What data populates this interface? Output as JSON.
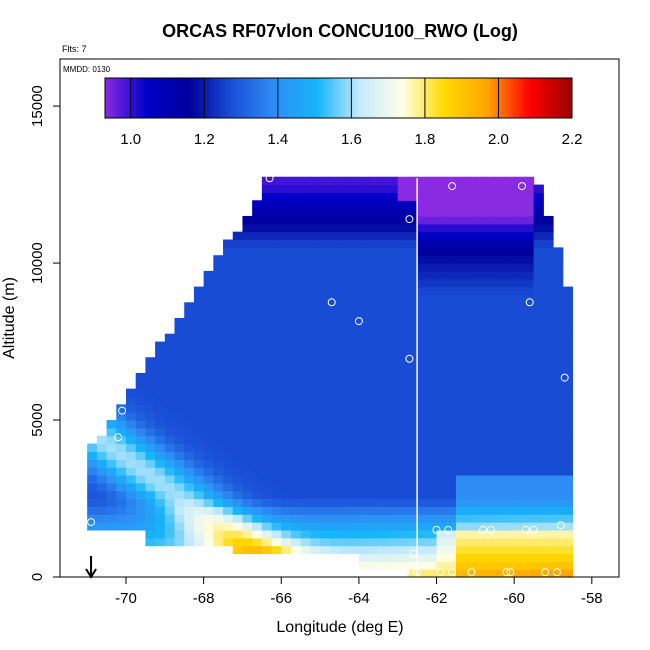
{
  "chart_data": {
    "type": "heatmap",
    "title": "ORCAS RF07vlon CONCU100_RWO (Log)",
    "annotation_flts": "Flts: 7",
    "annotation_mmdd": "MMDD: 0130",
    "xlabel": "Longitude (deg E)",
    "ylabel": "Altitude (m)",
    "xlim": [
      -71.7,
      -57.3
    ],
    "ylim": [
      0,
      16500
    ],
    "xticks": [
      -70,
      -68,
      -66,
      -64,
      -62,
      -60,
      -58
    ],
    "yticks": [
      0,
      5000,
      10000,
      15000
    ],
    "vertical_line_x": -62.5,
    "arrow_x": -70.9,
    "colorbar": {
      "min": 0.93,
      "max": 2.2,
      "ticks": [
        1.0,
        1.2,
        1.4,
        1.6,
        1.8,
        2.0,
        2.2
      ],
      "tick_labels": [
        "1.0",
        "1.2",
        "1.4",
        "1.6",
        "1.8",
        "2.0",
        "2.2"
      ],
      "colors": [
        "#8a2be2",
        "#0000c8",
        "#00009c",
        "#1a50d8",
        "#2e8ef5",
        "#15b5fa",
        "#c5eafd",
        "#ffffe6",
        "#ffd900",
        "#ffa500",
        "#ff0000",
        "#9a0000"
      ]
    },
    "observation_points": [
      {
        "lon": -66.3,
        "alt": 12700
      },
      {
        "lon": -61.6,
        "alt": 12450
      },
      {
        "lon": -59.8,
        "alt": 12450
      },
      {
        "lon": -62.7,
        "alt": 11400
      },
      {
        "lon": -64.7,
        "alt": 8750
      },
      {
        "lon": -59.6,
        "alt": 8750
      },
      {
        "lon": -64.0,
        "alt": 8150
      },
      {
        "lon": -62.7,
        "alt": 6950
      },
      {
        "lon": -58.7,
        "alt": 6350
      },
      {
        "lon": -70.1,
        "alt": 5300
      },
      {
        "lon": -70.2,
        "alt": 4450
      },
      {
        "lon": -70.9,
        "alt": 1750
      },
      {
        "lon": -62.0,
        "alt": 1500
      },
      {
        "lon": -61.7,
        "alt": 1500
      },
      {
        "lon": -60.8,
        "alt": 1500
      },
      {
        "lon": -60.6,
        "alt": 1500
      },
      {
        "lon": -59.7,
        "alt": 1500
      },
      {
        "lon": -59.5,
        "alt": 1500
      },
      {
        "lon": -58.8,
        "alt": 1650
      },
      {
        "lon": -62.6,
        "alt": 750
      },
      {
        "lon": -62.8,
        "alt": 150
      },
      {
        "lon": -62.5,
        "alt": 150
      },
      {
        "lon": -61.9,
        "alt": 150
      },
      {
        "lon": -61.6,
        "alt": 150
      },
      {
        "lon": -61.1,
        "alt": 150
      },
      {
        "lon": -60.2,
        "alt": 150
      },
      {
        "lon": -60.1,
        "alt": 150
      },
      {
        "lon": -59.2,
        "alt": 150
      },
      {
        "lon": -58.9,
        "alt": 150
      }
    ]
  }
}
